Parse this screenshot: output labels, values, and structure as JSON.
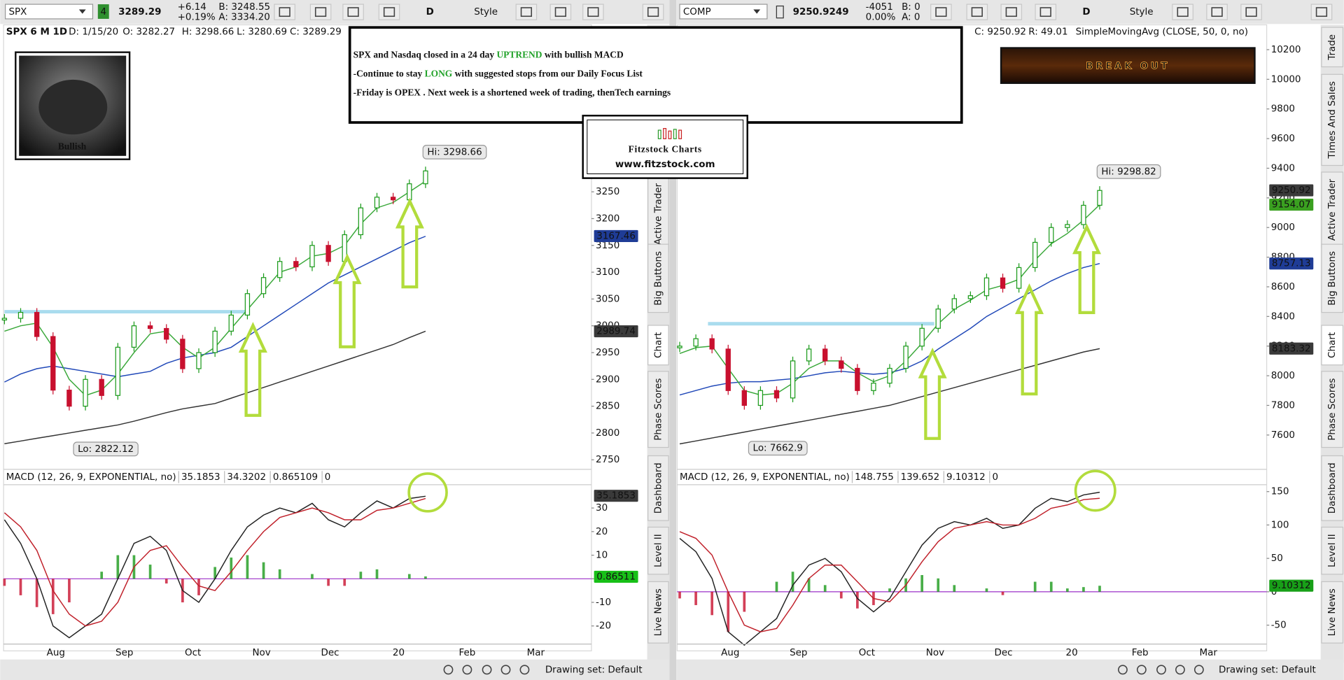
{
  "annotation": {
    "lines": [
      [
        "SPX and Nasdaq closed in a 24 day ",
        "UPTREND",
        " with bullish MACD"
      ],
      [
        "-Continue to stay ",
        "LONG",
        " with suggested stops from our Daily Focus List"
      ],
      [
        "-Friday is OPEX . Next week is a shortened week of trading, thenTech earnings"
      ]
    ],
    "highlight_color": "#22a22a"
  },
  "logo": {
    "title": "Fitzstock Charts",
    "url": "www.fitzstock.com"
  },
  "bull_caption": "Bullish",
  "banner": "BREAK OUT",
  "drawing_set": "Drawing set: Default",
  "panels": [
    {
      "toolbar": {
        "symbol": "SPX",
        "link": "4",
        "last": "3289.29",
        "change": "+6.14",
        "change_pct": "+0.19%",
        "bid": "B: 3248.55",
        "ask": "A: 3334.20",
        "period": "D",
        "style": "Style"
      },
      "header": [
        "SPX 6 M 1D",
        "D: 1/15/20",
        "O: 3282.27",
        "H: 3298.66",
        "L: 3280.69",
        "C: 3289.29"
      ],
      "header_extra": null,
      "price_ylim": [
        2737,
        3536
      ],
      "price_yticks": [
        2750,
        2800,
        2850,
        2900,
        2950,
        3000,
        3050,
        3100,
        3150,
        3200,
        3250
      ],
      "closes": [
        3014,
        3025,
        2980,
        2880,
        2850,
        2900,
        2870,
        2960,
        3000,
        2995,
        2975,
        2920,
        2950,
        2990,
        3020,
        3060,
        3090,
        3120,
        3110,
        3150,
        3120,
        3170,
        3220,
        3240,
        3235,
        3265,
        3289
      ],
      "ma_short": [
        2990,
        3000,
        3005,
        2960,
        2900,
        2870,
        2880,
        2910,
        2950,
        2985,
        2990,
        2960,
        2940,
        2960,
        2995,
        3030,
        3065,
        3100,
        3110,
        3130,
        3135,
        3150,
        3190,
        3220,
        3230,
        3250,
        3270
      ],
      "ma50": [
        2895,
        2910,
        2920,
        2925,
        2920,
        2915,
        2910,
        2905,
        2910,
        2915,
        2930,
        2940,
        2945,
        2950,
        2960,
        2980,
        3000,
        3020,
        3040,
        3060,
        3080,
        3095,
        3110,
        3125,
        3140,
        3155,
        3167
      ],
      "ma200": [
        2780,
        2785,
        2790,
        2795,
        2800,
        2805,
        2810,
        2815,
        2822,
        2830,
        2838,
        2845,
        2850,
        2855,
        2865,
        2875,
        2885,
        2895,
        2905,
        2915,
        2925,
        2935,
        2945,
        2955,
        2965,
        2978,
        2990
      ],
      "colors": {
        "up": "#1a9a1a",
        "down": "#c8102e",
        "ma_short": "#3aa83a",
        "ma50": "#2048b8",
        "ma200": "#333333",
        "macd": "#222222",
        "signal": "#c0202a",
        "zero": "#9b30c8"
      },
      "price_labels": [
        {
          "value": 3167.46,
          "bg": "#1f3c96"
        },
        {
          "value": 2989.74,
          "bg": "#3a3a3a"
        }
      ],
      "hi_label": "Hi: 3298.66",
      "lo_label": "Lo: 2822.12",
      "macd_title": "MACD (12, 26, 9, EXPONENTIAL, no)",
      "macd_values": [
        35.1853,
        34.3202,
        0.865109,
        0
      ],
      "macd_value_colors": [
        "#222222",
        "#c0202a",
        "#1a9a1a",
        "#9b30c8"
      ],
      "macd_ylim": [
        -27.3,
        39.5
      ],
      "macd_yticks": [
        -20,
        -10,
        0,
        10,
        20,
        30
      ],
      "macd": [
        25,
        15,
        0,
        -20,
        -25,
        -20,
        -15,
        0,
        15,
        18,
        12,
        -5,
        -10,
        0,
        12,
        22,
        27,
        30,
        28,
        32,
        25,
        22,
        28,
        33,
        30,
        34,
        35
      ],
      "signal": [
        28,
        22,
        12,
        -5,
        -15,
        -20,
        -18,
        -10,
        5,
        12,
        14,
        5,
        -3,
        -5,
        3,
        12,
        20,
        26,
        28,
        30,
        28,
        25,
        25,
        29,
        30,
        32,
        34
      ],
      "hist": [
        -3,
        -7,
        -12,
        -15,
        -10,
        0,
        3,
        10,
        10,
        6,
        -2,
        -10,
        -7,
        5,
        9,
        10,
        7,
        4,
        0,
        2,
        -3,
        -3,
        3,
        4,
        0,
        2,
        1
      ],
      "macd_labels": [
        {
          "value": 35.1853,
          "bg": "#3a3a3a"
        },
        {
          "value": 0.86511,
          "bg": "#18c018"
        }
      ],
      "x_labels": [
        "Aug",
        "Sep",
        "Oct",
        "Nov",
        "Dec",
        "20",
        "Feb",
        "Mar"
      ],
      "tabs": [
        "Active Trader",
        "Big Buttons",
        "Chart",
        "Phase Scores",
        "Dashboard",
        "Level II",
        "Live News"
      ]
    },
    {
      "toolbar": {
        "symbol": "COMP",
        "link": null,
        "last": "9250.9249",
        "change": "-4051",
        "change_pct": "0.00%",
        "bid": "B: 0",
        "ask": "A: 0",
        "period": "D",
        "style": "Style"
      },
      "header": [
        "C: 9250.92",
        "R: 49.01"
      ],
      "header_extra": "SimpleMovingAvg (CLOSE, 50, 0, no)",
      "price_ylim": [
        7386,
        10275
      ],
      "price_yticks": [
        7600,
        7800,
        8000,
        8200,
        8400,
        8600,
        8800,
        9000,
        9200,
        9400,
        9600,
        9800,
        10000,
        10200
      ],
      "closes": [
        8200,
        8250,
        8180,
        7900,
        7800,
        7900,
        7850,
        8100,
        8180,
        8100,
        8050,
        7900,
        7950,
        8050,
        8200,
        8320,
        8450,
        8520,
        8540,
        8660,
        8590,
        8730,
        8900,
        9000,
        9020,
        9150,
        9250
      ],
      "ma_short": [
        8150,
        8190,
        8200,
        8050,
        7900,
        7870,
        7880,
        7950,
        8050,
        8100,
        8100,
        8020,
        7960,
        8000,
        8100,
        8220,
        8350,
        8450,
        8510,
        8580,
        8610,
        8650,
        8780,
        8890,
        8960,
        9050,
        9154
      ],
      "ma50": [
        7870,
        7900,
        7930,
        7950,
        7960,
        7960,
        7970,
        7980,
        8000,
        8020,
        8030,
        8020,
        8010,
        8020,
        8050,
        8100,
        8180,
        8250,
        8320,
        8400,
        8460,
        8520,
        8580,
        8640,
        8690,
        8730,
        8757
      ],
      "ma200": [
        7540,
        7560,
        7580,
        7600,
        7620,
        7640,
        7660,
        7680,
        7700,
        7720,
        7740,
        7760,
        7780,
        7800,
        7830,
        7860,
        7890,
        7920,
        7950,
        7980,
        8010,
        8040,
        8070,
        8100,
        8130,
        8160,
        8183
      ],
      "colors": {
        "up": "#1a9a1a",
        "down": "#c8102e",
        "ma_short": "#3aa83a",
        "ma50": "#2048b8",
        "ma200": "#333333",
        "macd": "#222222",
        "signal": "#c0202a",
        "zero": "#9b30c8"
      },
      "price_labels": [
        {
          "value": 9250.92,
          "bg": "#3a3a3a"
        },
        {
          "value": 9154.07,
          "bg": "#3aa020"
        },
        {
          "value": 8757.13,
          "bg": "#1f3c96"
        },
        {
          "value": 8183.32,
          "bg": "#3a3a3a"
        }
      ],
      "hi_label": "Hi: 9298.82",
      "lo_label": "Lo: 7662.9",
      "macd_title": "MACD (12, 26, 9, EXPONENTIAL, no)",
      "macd_values": [
        148.755,
        139.652,
        9.10312,
        0
      ],
      "macd_value_colors": [
        "#222222",
        "#c0202a",
        "#1a9a1a",
        "#9b30c8"
      ],
      "macd_ylim": [
        -77,
        159
      ],
      "macd_yticks": [
        -50,
        0,
        50,
        100,
        150
      ],
      "macd": [
        80,
        60,
        20,
        -60,
        -80,
        -60,
        -40,
        10,
        40,
        50,
        30,
        -10,
        -30,
        -10,
        30,
        70,
        95,
        105,
        100,
        110,
        95,
        100,
        125,
        140,
        135,
        145,
        149
      ],
      "signal": [
        90,
        80,
        55,
        0,
        -50,
        -60,
        -55,
        -20,
        20,
        40,
        40,
        15,
        -10,
        -15,
        10,
        45,
        75,
        95,
        100,
        105,
        100,
        100,
        110,
        125,
        130,
        138,
        140
      ],
      "hist": [
        -10,
        -20,
        -35,
        -60,
        -30,
        0,
        15,
        30,
        20,
        10,
        -10,
        -25,
        -20,
        5,
        20,
        25,
        20,
        10,
        0,
        5,
        -5,
        0,
        15,
        15,
        5,
        7,
        9
      ],
      "macd_labels": [
        {
          "value": 9.10312,
          "bg": "#18a018"
        }
      ],
      "x_labels": [
        "Aug",
        "Sep",
        "Oct",
        "Nov",
        "Dec",
        "20",
        "Feb",
        "Mar"
      ],
      "tabs": [
        "Trade",
        "Times And Sales",
        "Active Trader",
        "Big Buttons",
        "Chart",
        "Phase Scores",
        "Dashboard",
        "Level II",
        "Live News"
      ]
    }
  ]
}
